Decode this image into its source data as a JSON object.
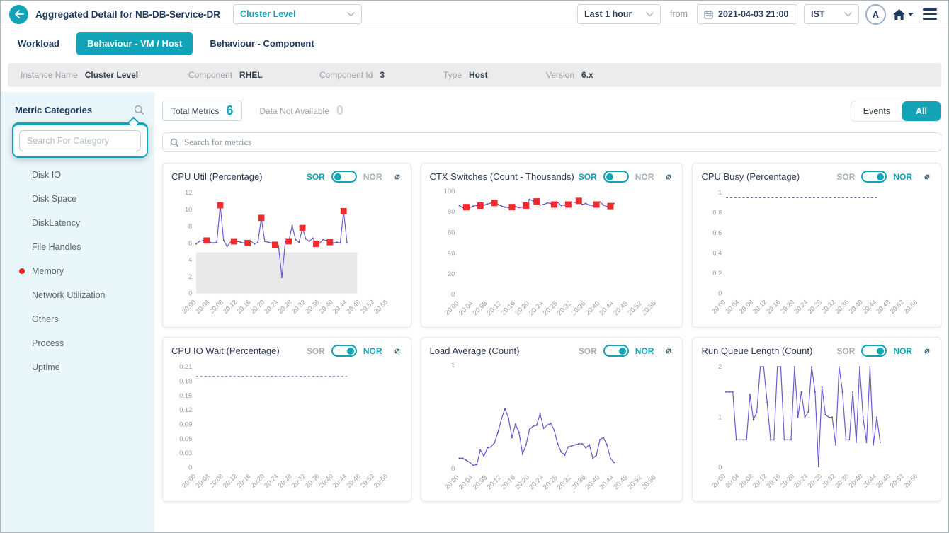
{
  "header": {
    "title": "Aggregated Detail for NB-DB-Service-DR",
    "back_label": "←",
    "level_dropdown_value": "Cluster Level",
    "time_range_value": "Last 1 hour",
    "from_label": "from",
    "datetime_value": "2021-04-03 21:00",
    "timezone_value": "IST",
    "avatar_letter": "A"
  },
  "tabs": [
    {
      "label": "Workload",
      "active": false
    },
    {
      "label": "Behaviour - VM / Host",
      "active": true
    },
    {
      "label": "Behaviour - Component",
      "active": false
    }
  ],
  "info_bar": {
    "fields": [
      {
        "label": "Instance Name",
        "value": "Cluster Level"
      },
      {
        "label": "Component",
        "value": "RHEL"
      },
      {
        "label": "Component Id",
        "value": "3"
      },
      {
        "label": "Type",
        "value": "Host"
      },
      {
        "label": "Version",
        "value": "6.x"
      }
    ]
  },
  "sidebar": {
    "title": "Metric Categories",
    "search_placeholder": "Search For Category",
    "categories": [
      {
        "label": "Disk IO",
        "alert": false
      },
      {
        "label": "Disk Space",
        "alert": false
      },
      {
        "label": "DiskLatency",
        "alert": false
      },
      {
        "label": "File Handles",
        "alert": false
      },
      {
        "label": "Memory",
        "alert": true
      },
      {
        "label": "Network Utilization",
        "alert": false
      },
      {
        "label": "Others",
        "alert": false
      },
      {
        "label": "Process",
        "alert": false
      },
      {
        "label": "Uptime",
        "alert": false
      }
    ]
  },
  "summary": {
    "total_metrics_label": "Total Metrics",
    "total_metrics_value": "6",
    "data_not_available_label": "Data Not Available",
    "data_not_available_value": "0",
    "events_button": "Events",
    "all_button": "All",
    "metrics_search_placeholder": "Search for metrics"
  },
  "colors": {
    "accent_teal": "#12a3b6",
    "line_purple": "#6a5acd",
    "point_purple": "#5b4bbf",
    "anomaly_red": "#f02b2b",
    "band_gray": "#e9e9e9",
    "navy_text": "#1e3a5f"
  },
  "charts_common": {
    "sor_label": "SOR",
    "nor_label": "NOR",
    "x_tick_labels": [
      "20:00",
      "20:04",
      "20:08",
      "20:12",
      "20:16",
      "20:20",
      "20:24",
      "20:28",
      "20:32",
      "20:36",
      "20:40",
      "20:44",
      "20:48",
      "20:52",
      "20:56"
    ],
    "x_min": 0,
    "x_max": 58,
    "minute_step": 1,
    "legend": "red squares = anomaly points, gray band = normal range"
  },
  "chart_data": [
    {
      "type": "line",
      "title": "CPU Util (Percentage)",
      "toggle": "SOR",
      "ylim": [
        0,
        12
      ],
      "y_ticks": [
        "0",
        "2",
        "4",
        "6",
        "8",
        "10",
        "12"
      ],
      "band": {
        "from": 0,
        "to": 4.9,
        "x_to_minute": 47
      },
      "dashed": false,
      "values": [
        5.9,
        6.2,
        6.3,
        6.3,
        6.1,
        6.0,
        6.1,
        10.5,
        6.3,
        5.6,
        6.1,
        6.2,
        6.2,
        6.1,
        6.0,
        6.0,
        6.2,
        5.9,
        6.1,
        9.0,
        6.2,
        6.1,
        6.0,
        5.8,
        5.7,
        1.9,
        6.2,
        6.2,
        8.1,
        6.4,
        6.1,
        7.8,
        6.5,
        6.2,
        6.6,
        5.9,
        6.0,
        6.4,
        6.3,
        6.1,
        6.0,
        6.1,
        6.0,
        9.8,
        6.0
      ],
      "anomaly_indices": [
        3,
        7,
        11,
        15,
        19,
        23,
        27,
        31,
        35,
        39,
        43
      ]
    },
    {
      "type": "line",
      "title": "CTX Switches (Count - Thousands)",
      "toggle": "SOR",
      "ylim": [
        0,
        100
      ],
      "y_ticks": [
        "0",
        "20",
        "40",
        "60",
        "80",
        "100"
      ],
      "band": null,
      "dashed": false,
      "values": [
        86,
        84,
        84.5,
        84,
        85.5,
        86,
        86,
        86.5,
        87.5,
        88.5,
        88.5,
        87,
        85.5,
        84.5,
        84,
        84.5,
        85,
        84,
        84.5,
        86,
        92,
        90.5,
        90,
        86.5,
        87,
        88.5,
        88,
        87,
        89,
        86,
        86.5,
        87,
        89.5,
        89,
        90.5,
        87,
        88,
        86.5,
        86,
        87,
        89.5,
        86.5,
        85,
        85.5,
        88
      ],
      "anomaly_indices": [
        2,
        6,
        10,
        15,
        19,
        22,
        27,
        31,
        34,
        39,
        43
      ]
    },
    {
      "type": "line",
      "title": "CPU Busy (Percentage)",
      "toggle": "NOR",
      "ylim": [
        0,
        1
      ],
      "y_ticks": [
        "0",
        "0.2",
        "0.4",
        "0.6",
        "0.8",
        "1"
      ],
      "band": null,
      "dashed": true,
      "values": [
        0.95,
        0.95,
        0.95,
        0.95,
        0.95,
        0.95,
        0.95,
        0.95,
        0.95,
        0.95,
        0.95,
        0.95,
        0.95,
        0.95,
        0.95,
        0.95,
        0.95,
        0.95,
        0.95,
        0.95,
        0.95,
        0.95,
        0.95,
        0.95,
        0.95,
        0.95,
        0.95,
        0.95,
        0.95,
        0.95,
        0.95,
        0.95,
        0.95,
        0.95,
        0.95,
        0.95,
        0.95,
        0.95,
        0.95,
        0.95,
        0.95,
        0.95,
        0.95,
        0.95,
        0.95
      ],
      "anomaly_indices": []
    },
    {
      "type": "line",
      "title": "CPU IO Wait (Percentage)",
      "toggle": "NOR",
      "ylim": [
        0,
        0.21
      ],
      "y_ticks": [
        "0",
        "0.03",
        "0.06",
        "0.09",
        "0.12",
        "0.15",
        "0.18",
        "0.21"
      ],
      "band": null,
      "dashed": true,
      "values": [
        0.19,
        0.19,
        0.19,
        0.19,
        0.19,
        0.19,
        0.19,
        0.19,
        0.19,
        0.19,
        0.19,
        0.19,
        0.19,
        0.19,
        0.19,
        0.19,
        0.19,
        0.19,
        0.19,
        0.19,
        0.19,
        0.19,
        0.19,
        0.19,
        0.19,
        0.19,
        0.19,
        0.19,
        0.19,
        0.19,
        0.19,
        0.19,
        0.19,
        0.19,
        0.19,
        0.19,
        0.19,
        0.19,
        0.19,
        0.19,
        0.19,
        0.19,
        0.19,
        0.19,
        0.19
      ],
      "anomaly_indices": []
    },
    {
      "type": "line",
      "title": "Load Average (Count)",
      "toggle": "NOR",
      "ylim": [
        0,
        1
      ],
      "y_ticks": [
        "0",
        "1"
      ],
      "band": null,
      "dashed": false,
      "values": [
        0.1,
        0.1,
        0.08,
        0.06,
        0.03,
        0.04,
        0.18,
        0.12,
        0.2,
        0.21,
        0.25,
        0.35,
        0.48,
        0.58,
        0.49,
        0.3,
        0.43,
        0.35,
        0.14,
        0.23,
        0.38,
        0.41,
        0.42,
        0.53,
        0.39,
        0.42,
        0.44,
        0.37,
        0.24,
        0.16,
        0.13,
        0.21,
        0.22,
        0.23,
        0.24,
        0.24,
        0.2,
        0.23,
        0.1,
        0.13,
        0.28,
        0.3,
        0.23,
        0.1,
        0.06
      ],
      "anomaly_indices": []
    },
    {
      "type": "line",
      "title": "Run Queue Length (Count)",
      "toggle": "NOR",
      "ylim": [
        0,
        2
      ],
      "y_ticks": [
        "0",
        "1",
        "2"
      ],
      "band": null,
      "dashed": false,
      "values": [
        1.5,
        1.5,
        1.5,
        0.55,
        0.55,
        0.55,
        0.55,
        1.45,
        0.95,
        1.1,
        2,
        2,
        1.3,
        0.55,
        0.55,
        2,
        2,
        0.55,
        0.55,
        0.55,
        2,
        1.0,
        1.5,
        1.0,
        1.1,
        2,
        1.5,
        0.02,
        1.6,
        1.05,
        1.0,
        1.0,
        0.45,
        2,
        1.5,
        0.55,
        0.55,
        1.5,
        0.5,
        2,
        1.0,
        0.5,
        2,
        0.45,
        1.0,
        0.5
      ],
      "anomaly_indices": []
    }
  ]
}
